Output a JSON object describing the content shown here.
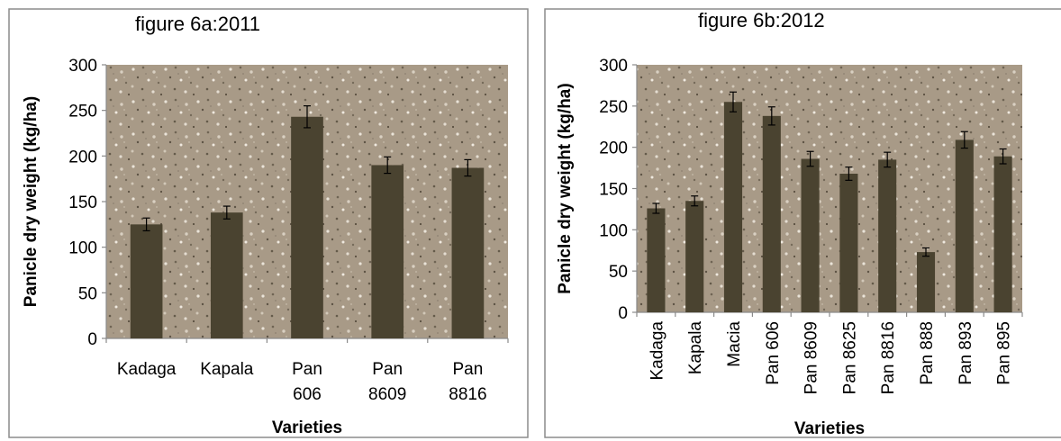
{
  "chart_data": [
    {
      "type": "bar",
      "title": "figure 6a:2011",
      "xlabel": "Varieties",
      "ylabel": "Panicle dry weight (kg/ha)",
      "ylim": [
        0,
        300
      ],
      "yticks": [
        "0",
        "50",
        "100",
        "150",
        "200",
        "250",
        "300"
      ],
      "grid": false,
      "categories": [
        "Kadaga",
        "Kapala",
        "Pan 606",
        "Pan 8609",
        "Pan 8816"
      ],
      "category_lines": [
        [
          "Kadaga"
        ],
        [
          "Kapala"
        ],
        [
          "Pan",
          "606"
        ],
        [
          "Pan",
          "8609"
        ],
        [
          "Pan",
          "8816"
        ]
      ],
      "values": [
        125,
        138,
        243,
        190,
        187
      ],
      "errors": [
        7,
        7,
        12,
        9,
        9
      ],
      "bar_color": "#4a4330",
      "plot_background": "#a89a87"
    },
    {
      "type": "bar",
      "title": "figure 6b:2012",
      "xlabel": "Varieties",
      "ylabel": "Panicle dry weight (kg/ha)",
      "ylim": [
        0,
        300
      ],
      "yticks": [
        "0",
        "50",
        "100",
        "150",
        "200",
        "250",
        "300"
      ],
      "grid": false,
      "categories": [
        "Kadaga",
        "Kapala",
        "Macia",
        "Pan 606",
        "Pan 8609",
        "Pan 8625",
        "Pan 8816",
        "Pan 888",
        "Pan 893",
        "Pan 895"
      ],
      "values": [
        126,
        135,
        255,
        238,
        186,
        168,
        185,
        73,
        209,
        189
      ],
      "errors": [
        6,
        6,
        12,
        11,
        9,
        8,
        9,
        5,
        10,
        9
      ],
      "bar_color": "#4a4330",
      "plot_background": "#a89a87"
    }
  ]
}
